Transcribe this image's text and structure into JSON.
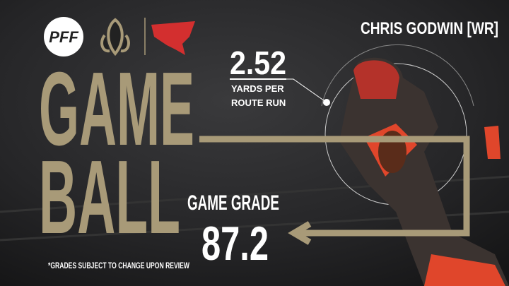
{
  "logo": "PFF",
  "headline": [
    "GAME",
    "BALL"
  ],
  "player": "CHRIS GODWIN [WR]",
  "stat": {
    "value": 2.52,
    "label": [
      "YARDS PER",
      "ROUTE RUN"
    ]
  },
  "grade": {
    "label": "GAME GRADE",
    "value": 87.2
  },
  "footnote": "*GRADES SUBJECT TO CHANGE UPON REVIEW"
}
